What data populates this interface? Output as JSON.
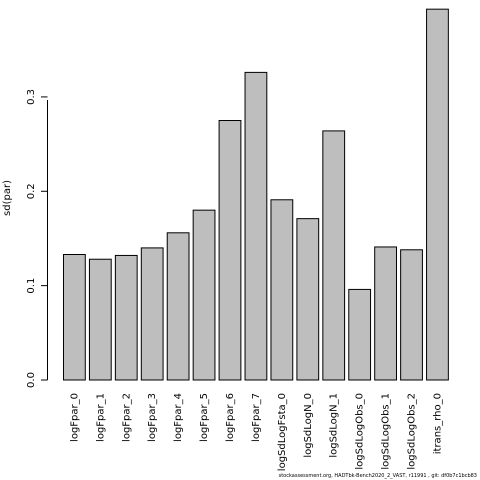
{
  "chart_data": {
    "type": "bar",
    "title": "",
    "xlabel": "",
    "ylabel": "sd(par)",
    "ylim": [
      0,
      0.39
    ],
    "yticks": [
      "0.0",
      "0.1",
      "0.2",
      "0.3"
    ],
    "grid": false,
    "categories": [
      "logFpar_0",
      "logFpar_1",
      "logFpar_2",
      "logFpar_3",
      "logFpar_4",
      "logFpar_5",
      "logFpar_6",
      "logFpar_7",
      "logSdLogFsta_0",
      "logSdLogN_0",
      "logSdLogN_1",
      "logSdLogObs_0",
      "logSdLogObs_1",
      "logSdLogObs_2",
      "itrans_rho_0"
    ],
    "values": [
      0.133,
      0.128,
      0.132,
      0.14,
      0.156,
      0.18,
      0.275,
      0.326,
      0.191,
      0.171,
      0.264,
      0.096,
      0.141,
      0.138,
      0.393
    ],
    "bar_color": "#bebebe",
    "bar_edge_color": "#000000"
  },
  "footer": "stockassessment.org, HADTbk-Bench2020_2_VAST, r11991 , git: df0b7c1bcb83"
}
